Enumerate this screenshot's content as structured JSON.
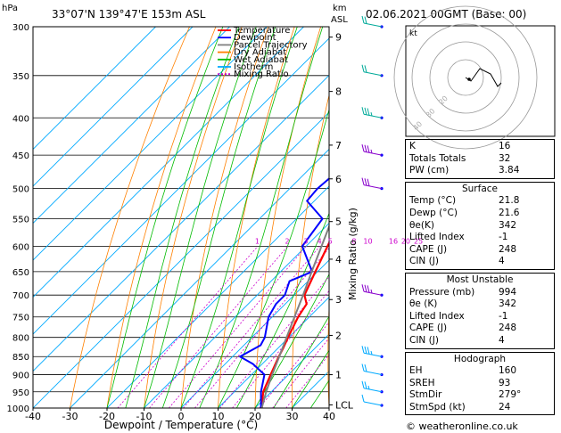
{
  "header": {
    "location": "33°07'N  139°47'E  153m  ASL",
    "datetime": "02.06.2021  00GMT  (Base: 00)",
    "hpa_unit": "hPa",
    "km_unit": "km",
    "asl_unit": "ASL"
  },
  "chart_data": {
    "type": "skew-t",
    "xlabel": "Dewpoint / Temperature (°C)",
    "ylabel_right": "Mixing Ratio (g/kg)",
    "x_ticks": [
      -40,
      -30,
      -20,
      -10,
      0,
      10,
      20,
      30,
      40
    ],
    "pressure_ticks": [
      300,
      350,
      400,
      450,
      500,
      550,
      600,
      650,
      700,
      750,
      800,
      850,
      900,
      950,
      1000
    ],
    "km_ticks": [
      {
        "label": "9",
        "p": 310
      },
      {
        "label": "8",
        "p": 368
      },
      {
        "label": "7",
        "p": 436
      },
      {
        "label": "6",
        "p": 485
      },
      {
        "label": "5",
        "p": 555
      },
      {
        "label": "4",
        "p": 625
      },
      {
        "label": "3",
        "p": 710
      },
      {
        "label": "2",
        "p": 795
      },
      {
        "label": "1",
        "p": 900
      },
      {
        "label": "LCL",
        "p": 990
      }
    ],
    "mixing_ratio_labels": [
      "1",
      "2",
      "3",
      "4",
      "5",
      "8",
      "10",
      "16",
      "20",
      "25"
    ],
    "legend": [
      {
        "name": "Temperature",
        "color": "#ff0000"
      },
      {
        "name": "Dewpoint",
        "color": "#0000ff"
      },
      {
        "name": "Parcel Trajectory",
        "color": "#808080"
      },
      {
        "name": "Dry Adiabat",
        "color": "#ff8000"
      },
      {
        "name": "Wet Adiabat",
        "color": "#00bb00"
      },
      {
        "name": "Isotherm",
        "color": "#00aaff"
      },
      {
        "name": "Mixing Ratio",
        "color": "#cc00cc"
      }
    ],
    "series": [
      {
        "name": "Temperature",
        "points": [
          [
            1000,
            21.8
          ],
          [
            950,
            17.8
          ],
          [
            900,
            15.2
          ],
          [
            850,
            12.5
          ],
          [
            830,
            11.5
          ],
          [
            800,
            9.8
          ],
          [
            750,
            7.0
          ],
          [
            720,
            5.8
          ],
          [
            700,
            2.8
          ],
          [
            650,
            -0.6
          ],
          [
            600,
            -4.2
          ],
          [
            550,
            -8.0
          ],
          [
            500,
            -12.8
          ],
          [
            450,
            -18.8
          ],
          [
            400,
            -24.5
          ],
          [
            350,
            -32.0
          ],
          [
            300,
            -40.0
          ]
        ]
      },
      {
        "name": "Dewpoint",
        "points": [
          [
            1000,
            21.6
          ],
          [
            950,
            17.2
          ],
          [
            900,
            13.5
          ],
          [
            870,
            7.5
          ],
          [
            850,
            2.0
          ],
          [
            820,
            4.5
          ],
          [
            800,
            3.5
          ],
          [
            750,
            -1.0
          ],
          [
            720,
            -2.5
          ],
          [
            700,
            -2.5
          ],
          [
            670,
            -5.0
          ],
          [
            650,
            -1.5
          ],
          [
            600,
            -11.0
          ],
          [
            550,
            -13.0
          ],
          [
            520,
            -22.0
          ],
          [
            500,
            -22.5
          ],
          [
            450,
            -21.0
          ],
          [
            420,
            -29.0
          ],
          [
            400,
            -30.0
          ],
          [
            350,
            -37.0
          ],
          [
            330,
            -44.0
          ],
          [
            300,
            -53.0
          ]
        ]
      },
      {
        "name": "Parcel Trajectory",
        "points": [
          [
            1000,
            21.8
          ],
          [
            950,
            18.6
          ],
          [
            900,
            15.6
          ],
          [
            850,
            12.6
          ],
          [
            800,
            9.4
          ],
          [
            750,
            6.0
          ],
          [
            700,
            2.4
          ],
          [
            650,
            -1.6
          ],
          [
            600,
            -5.8
          ],
          [
            550,
            -10.4
          ],
          [
            500,
            -15.6
          ],
          [
            450,
            -21.4
          ],
          [
            400,
            -28.0
          ],
          [
            350,
            -35.6
          ],
          [
            300,
            -44.0
          ]
        ]
      }
    ],
    "wind_barbs": [
      {
        "p": 1000,
        "dir": 200,
        "spd": 10
      },
      {
        "p": 950,
        "dir": 220,
        "spd": 15
      },
      {
        "p": 900,
        "dir": 230,
        "spd": 20
      },
      {
        "p": 850,
        "dir": 250,
        "spd": 25
      },
      {
        "p": 700,
        "dir": 270,
        "spd": 25
      },
      {
        "p": 500,
        "dir": 280,
        "spd": 30
      },
      {
        "p": 450,
        "dir": 280,
        "spd": 25
      },
      {
        "p": 400,
        "dir": 300,
        "spd": 25
      },
      {
        "p": 350,
        "dir": 300,
        "spd": 20
      },
      {
        "p": 300,
        "dir": 290,
        "spd": 20
      }
    ],
    "hodograph": {
      "label": "kt",
      "ring_labels": [
        "40",
        "30",
        "20"
      ],
      "trace_kt": [
        [
          0,
          0
        ],
        [
          3,
          -2
        ],
        [
          8,
          5
        ],
        [
          14,
          2
        ],
        [
          18,
          -5
        ],
        [
          20,
          -3
        ]
      ]
    }
  },
  "indices": {
    "basic": [
      {
        "label": "K",
        "value": "16"
      },
      {
        "label": "Totals Totals",
        "value": "32"
      },
      {
        "label": "PW (cm)",
        "value": "3.84"
      }
    ],
    "surface": {
      "title": "Surface",
      "rows": [
        {
          "label": "Temp (°C)",
          "value": "21.8"
        },
        {
          "label": "Dewp (°C)",
          "value": "21.6"
        },
        {
          "label": "θe(K)",
          "value": "342"
        },
        {
          "label": "Lifted Index",
          "value": "-1"
        },
        {
          "label": "CAPE (J)",
          "value": "248"
        },
        {
          "label": "CIN (J)",
          "value": "4"
        }
      ]
    },
    "most_unstable": {
      "title": "Most Unstable",
      "rows": [
        {
          "label": "Pressure (mb)",
          "value": "994"
        },
        {
          "label": "θe (K)",
          "value": "342"
        },
        {
          "label": "Lifted Index",
          "value": "-1"
        },
        {
          "label": "CAPE (J)",
          "value": "248"
        },
        {
          "label": "CIN (J)",
          "value": "4"
        }
      ]
    },
    "hodograph": {
      "title": "Hodograph",
      "rows": [
        {
          "label": "EH",
          "value": "160"
        },
        {
          "label": "SREH",
          "value": "93"
        },
        {
          "label": "StmDir",
          "value": "279°"
        },
        {
          "label": "StmSpd (kt)",
          "value": "24"
        }
      ]
    }
  },
  "footer": {
    "copyright": "© weatheronline.co.uk"
  }
}
